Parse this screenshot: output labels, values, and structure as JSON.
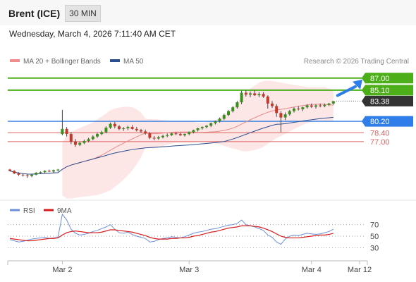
{
  "header": {
    "title": "Brent (ICE)",
    "timeframe": "30 MIN"
  },
  "datetime": "Wednesday, March 4, 2026 7:11:40 AM CET",
  "legend": {
    "ma20": "MA 20 + Bollinger Bands",
    "ma50": "MA 50",
    "copyright": "Research © 2026 Trading Central"
  },
  "colors": {
    "target": "#4caf19",
    "pivot": "#2f7de8",
    "support": "#e06060",
    "current": "#333333",
    "ma20": "#e88a8a",
    "ma50": "#2a4f8f",
    "bollinger_fill": "#fde0e0",
    "candle_up": "#3a8f1e",
    "candle_down": "#c0392b",
    "rsi": "#6d8fd8",
    "rsi_ma": "#d81b1b"
  },
  "price_levels": [
    {
      "label": "87.00",
      "value": 87.0,
      "kind": "target"
    },
    {
      "label": "85.10",
      "value": 85.1,
      "kind": "target"
    },
    {
      "label": "83.38",
      "value": 83.38,
      "kind": "current"
    },
    {
      "label": "80.20",
      "value": 80.2,
      "kind": "pivot"
    },
    {
      "label": "78.40",
      "value": 78.4,
      "kind": "support"
    },
    {
      "label": "77.00",
      "value": 77.0,
      "kind": "support"
    }
  ],
  "rsi_panel": {
    "legend_rsi": "RSI",
    "legend_ma": "9MA",
    "levels": [
      {
        "label": "70",
        "value": 70
      },
      {
        "label": "50",
        "value": 50
      },
      {
        "label": "30",
        "value": 30
      }
    ]
  },
  "x_axis": {
    "ticks": [
      {
        "label": "Mar 2",
        "index": 12
      },
      {
        "label": "Mar 3",
        "index": 41
      },
      {
        "label": "Mar 4",
        "index": 69
      },
      {
        "label": "Mar 12",
        "index": 80
      }
    ]
  },
  "chart_data": {
    "type": "candlestick",
    "ylim": [
      68.0,
      88.2
    ],
    "candles": [
      [
        72.6,
        72.7,
        72.3,
        72.4
      ],
      [
        72.4,
        72.5,
        71.9,
        72.0
      ],
      [
        72.0,
        72.2,
        71.6,
        71.8
      ],
      [
        71.8,
        72.0,
        71.5,
        71.7
      ],
      [
        71.7,
        71.9,
        71.3,
        71.6
      ],
      [
        71.6,
        71.9,
        71.4,
        71.8
      ],
      [
        71.8,
        72.2,
        71.7,
        72.1
      ],
      [
        72.1,
        72.3,
        71.9,
        72.2
      ],
      [
        72.2,
        72.5,
        72.0,
        72.4
      ],
      [
        72.4,
        72.6,
        72.2,
        72.3
      ],
      [
        72.3,
        72.6,
        72.1,
        72.5
      ],
      [
        72.5,
        72.7,
        72.3,
        72.6
      ],
      [
        78.2,
        82.0,
        78.0,
        79.0
      ],
      [
        79.0,
        79.3,
        77.8,
        78.2
      ],
      [
        78.2,
        78.5,
        76.6,
        77.0
      ],
      [
        77.0,
        77.4,
        76.2,
        76.5
      ],
      [
        76.5,
        77.0,
        76.3,
        76.8
      ],
      [
        76.8,
        77.3,
        76.6,
        77.1
      ],
      [
        77.1,
        77.6,
        76.9,
        77.4
      ],
      [
        77.4,
        78.0,
        77.2,
        77.8
      ],
      [
        77.8,
        78.4,
        77.6,
        78.2
      ],
      [
        78.2,
        78.7,
        78.0,
        78.5
      ],
      [
        78.5,
        79.4,
        78.3,
        79.2
      ],
      [
        79.2,
        80.0,
        79.0,
        79.8
      ],
      [
        79.8,
        80.1,
        79.1,
        79.4
      ],
      [
        79.4,
        79.6,
        78.8,
        79.0
      ],
      [
        79.0,
        79.3,
        78.7,
        79.1
      ],
      [
        79.1,
        79.5,
        78.8,
        79.3
      ],
      [
        79.3,
        79.6,
        78.9,
        79.0
      ],
      [
        79.0,
        79.3,
        78.6,
        78.8
      ],
      [
        78.8,
        79.0,
        78.4,
        78.6
      ],
      [
        78.6,
        78.9,
        78.1,
        78.3
      ],
      [
        78.3,
        78.5,
        77.4,
        77.6
      ],
      [
        77.6,
        77.9,
        77.2,
        77.5
      ],
      [
        77.5,
        77.9,
        77.3,
        77.7
      ],
      [
        77.7,
        78.1,
        77.5,
        77.9
      ],
      [
        77.9,
        78.3,
        77.7,
        78.0
      ],
      [
        78.0,
        78.4,
        77.9,
        78.3
      ],
      [
        78.3,
        78.5,
        78.0,
        78.2
      ],
      [
        78.2,
        78.4,
        77.9,
        78.0
      ],
      [
        78.0,
        78.3,
        77.8,
        78.2
      ],
      [
        78.2,
        78.6,
        78.0,
        78.5
      ],
      [
        78.5,
        78.9,
        78.3,
        78.8
      ],
      [
        78.8,
        79.2,
        78.6,
        79.1
      ],
      [
        79.1,
        79.4,
        78.9,
        79.3
      ],
      [
        79.3,
        79.6,
        79.1,
        79.5
      ],
      [
        79.5,
        80.0,
        79.3,
        79.9
      ],
      [
        79.9,
        80.3,
        79.7,
        80.2
      ],
      [
        80.2,
        80.8,
        80.0,
        80.6
      ],
      [
        80.6,
        81.4,
        80.4,
        81.2
      ],
      [
        81.2,
        82.0,
        81.0,
        81.8
      ],
      [
        81.8,
        82.6,
        81.6,
        82.4
      ],
      [
        82.4,
        83.4,
        82.2,
        83.2
      ],
      [
        83.2,
        85.0,
        82.9,
        84.7
      ],
      [
        84.7,
        85.1,
        84.1,
        84.4
      ],
      [
        84.4,
        84.9,
        84.0,
        84.6
      ],
      [
        84.6,
        85.1,
        84.2,
        84.3
      ],
      [
        84.3,
        84.8,
        84.0,
        84.5
      ],
      [
        84.5,
        84.8,
        83.9,
        84.1
      ],
      [
        84.1,
        84.3,
        82.2,
        83.0
      ],
      [
        83.0,
        83.4,
        82.3,
        82.6
      ],
      [
        82.6,
        82.9,
        80.9,
        81.5
      ],
      [
        81.5,
        81.8,
        78.5,
        80.8
      ],
      [
        80.8,
        81.6,
        80.4,
        81.3
      ],
      [
        81.3,
        82.0,
        81.1,
        81.8
      ],
      [
        81.8,
        82.4,
        81.6,
        82.2
      ],
      [
        82.2,
        82.6,
        81.9,
        82.1
      ],
      [
        82.1,
        82.5,
        81.8,
        82.4
      ],
      [
        82.4,
        82.9,
        82.2,
        82.7
      ],
      [
        82.7,
        83.0,
        82.3,
        82.5
      ],
      [
        82.5,
        82.9,
        82.2,
        82.7
      ],
      [
        82.7,
        83.0,
        82.4,
        82.6
      ],
      [
        82.6,
        83.0,
        82.4,
        82.8
      ],
      [
        82.8,
        83.1,
        82.6,
        83.0
      ],
      [
        83.0,
        83.4,
        82.8,
        83.38
      ]
    ],
    "rsi": [
      44,
      42,
      40,
      41,
      43,
      45,
      46,
      47,
      48,
      46,
      47,
      48,
      88,
      78,
      62,
      55,
      52,
      53,
      55,
      58,
      60,
      63,
      66,
      70,
      62,
      56,
      55,
      57,
      53,
      50,
      48,
      46,
      40,
      41,
      44,
      46,
      47,
      49,
      48,
      47,
      49,
      52,
      55,
      57,
      58,
      60,
      62,
      63,
      65,
      67,
      69,
      70,
      72,
      78,
      70,
      68,
      66,
      63,
      60,
      52,
      48,
      40,
      36,
      45,
      50,
      52,
      51,
      53,
      55,
      54,
      53,
      54,
      56,
      58,
      62
    ],
    "rsi_ma": [
      46,
      45,
      44,
      43,
      42,
      42,
      43,
      44,
      45,
      46,
      46,
      47,
      52,
      56,
      58,
      59,
      58,
      57,
      56,
      56,
      56,
      57,
      59,
      61,
      61,
      60,
      59,
      58,
      57,
      55,
      53,
      51,
      48,
      46,
      45,
      45,
      45,
      46,
      46,
      47,
      47,
      48,
      50,
      51,
      53,
      55,
      57,
      58,
      60,
      62,
      64,
      65,
      66,
      68,
      68,
      68,
      67,
      66,
      64,
      61,
      58,
      54,
      50,
      48,
      47,
      47,
      47,
      48,
      49,
      50,
      51,
      52,
      52,
      53,
      55
    ]
  }
}
